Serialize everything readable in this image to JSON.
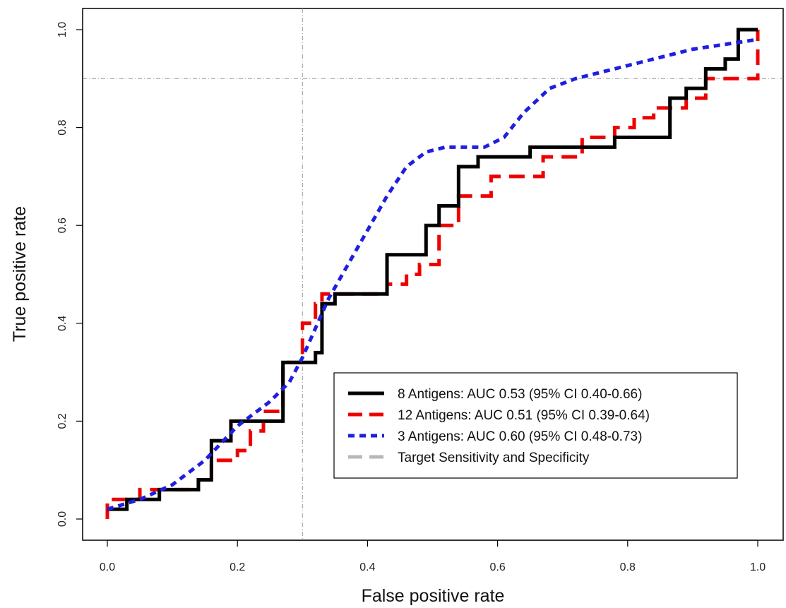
{
  "chart_data": {
    "type": "line",
    "xlabel": "False positive rate",
    "ylabel": "True positive rate",
    "xlim": [
      0,
      1
    ],
    "ylim": [
      0,
      1
    ],
    "xticks": [
      "0.0",
      "0.2",
      "0.4",
      "0.6",
      "0.8",
      "1.0"
    ],
    "yticks": [
      "0.0",
      "0.2",
      "0.4",
      "0.6",
      "0.8",
      "1.0"
    ],
    "reference_lines": {
      "x": 0.3,
      "y": 0.9
    },
    "legend_position": "bottom-right",
    "series": [
      {
        "name": "8 Antigens: AUC 0.53 (95% CI 0.40-0.66)",
        "color": "#000000",
        "style": "solid",
        "step": true,
        "x": [
          0,
          0.03,
          0.08,
          0.14,
          0.16,
          0.19,
          0.27,
          0.27,
          0.32,
          0.33,
          0.35,
          0.43,
          0.49,
          0.51,
          0.54,
          0.57,
          0.65,
          0.73,
          0.78,
          0.865,
          0.89,
          0.92,
          0.95,
          0.97,
          1.0
        ],
        "y": [
          0.02,
          0.04,
          0.06,
          0.08,
          0.16,
          0.2,
          0.2,
          0.32,
          0.34,
          0.44,
          0.46,
          0.54,
          0.6,
          0.64,
          0.72,
          0.74,
          0.76,
          0.76,
          0.78,
          0.86,
          0.88,
          0.92,
          0.94,
          1.0,
          1.0
        ]
      },
      {
        "name": "12 Antigens: AUC 0.51 (95% CI 0.39-0.64)",
        "color": "#ee0000",
        "style": "dashed",
        "step": true,
        "x": [
          0,
          0.0,
          0.05,
          0.11,
          0.14,
          0.16,
          0.2,
          0.22,
          0.24,
          0.27,
          0.27,
          0.3,
          0.32,
          0.33,
          0.43,
          0.46,
          0.48,
          0.51,
          0.54,
          0.59,
          0.67,
          0.73,
          0.78,
          0.81,
          0.84,
          0.89,
          0.92,
          1.0,
          1.0
        ],
        "y": [
          0.0,
          0.04,
          0.06,
          0.06,
          0.08,
          0.12,
          0.14,
          0.18,
          0.22,
          0.32,
          0.32,
          0.4,
          0.44,
          0.46,
          0.48,
          0.5,
          0.52,
          0.6,
          0.66,
          0.7,
          0.74,
          0.78,
          0.8,
          0.82,
          0.84,
          0.86,
          0.9,
          0.92,
          1.0
        ]
      },
      {
        "name": "3 Antigens: AUC 0.60 (95% CI 0.48-0.73)",
        "color": "#1f1fe0",
        "style": "dotted",
        "step": false,
        "x": [
          0,
          0.05,
          0.1,
          0.15,
          0.2,
          0.25,
          0.28,
          0.3,
          0.32,
          0.34,
          0.37,
          0.4,
          0.43,
          0.46,
          0.49,
          0.52,
          0.55,
          0.58,
          0.61,
          0.64,
          0.68,
          0.72,
          0.78,
          0.84,
          0.9,
          0.95,
          1.0
        ],
        "y": [
          0.02,
          0.04,
          0.07,
          0.12,
          0.19,
          0.24,
          0.28,
          0.33,
          0.39,
          0.45,
          0.52,
          0.59,
          0.66,
          0.72,
          0.75,
          0.76,
          0.76,
          0.76,
          0.78,
          0.83,
          0.88,
          0.9,
          0.92,
          0.94,
          0.96,
          0.97,
          0.98
        ]
      },
      {
        "name": "Target Sensitivity and Specificity",
        "color": "#b8b8b8",
        "style": "dashed",
        "legend_only": true
      }
    ]
  }
}
